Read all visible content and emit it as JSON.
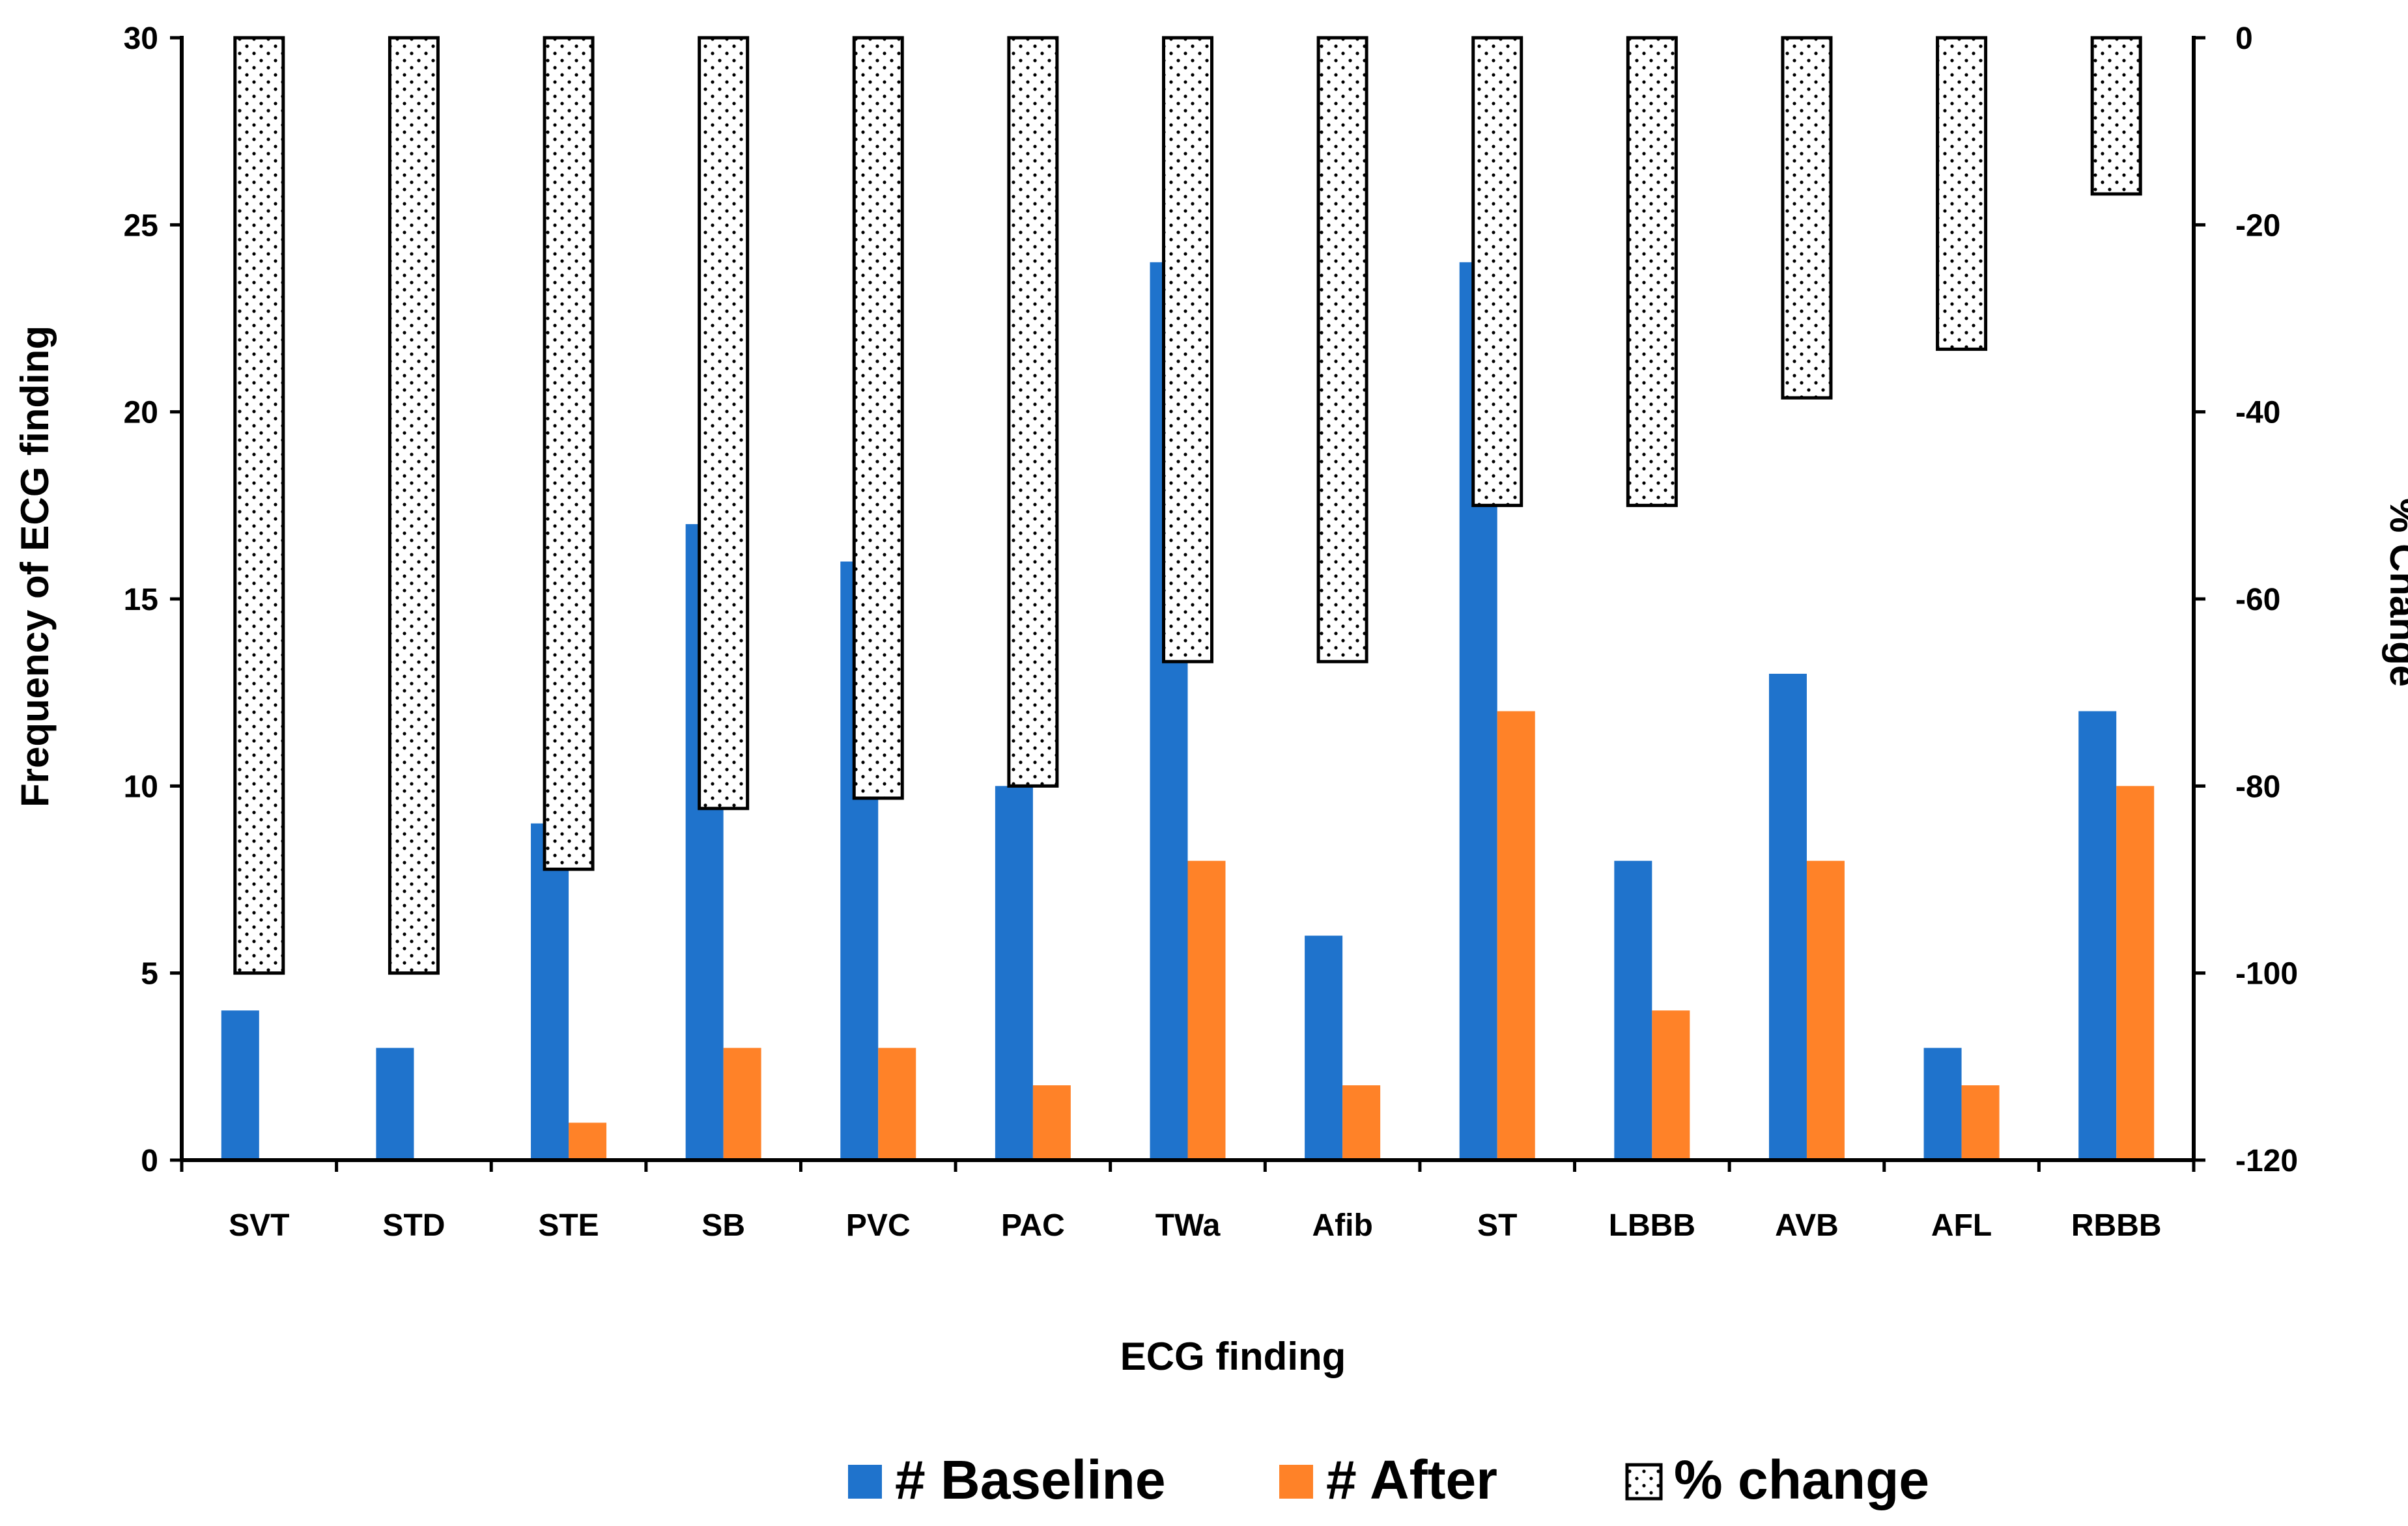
{
  "chart_data": {
    "type": "bar",
    "title": "",
    "xlabel": "ECG finding",
    "ylabel": "Frequency of ECG finding",
    "y2label": "% Change",
    "ylim": [
      0,
      30
    ],
    "y2lim": [
      -120,
      0
    ],
    "yticks": [
      "0",
      "5",
      "10",
      "15",
      "20",
      "25",
      "30"
    ],
    "y2ticks": [
      "-120",
      "-100",
      "-80",
      "-60",
      "-40",
      "-20",
      "0"
    ],
    "categories": [
      "SVT",
      "STD",
      "STE",
      "SB",
      "PVC",
      "PAC",
      "TWa",
      "Afib",
      "ST",
      "LBBB",
      "AVB",
      "AFL",
      "RBBB"
    ],
    "series": [
      {
        "name": "# Baseline",
        "axis": "left",
        "color": "#1F73CC",
        "values": [
          4,
          3,
          9,
          17,
          16,
          10,
          24,
          6,
          24,
          8,
          13,
          3,
          12
        ]
      },
      {
        "name": "# After",
        "axis": "left",
        "color": "#FF8228",
        "values": [
          0,
          0,
          1,
          3,
          3,
          2,
          8,
          2,
          12,
          4,
          8,
          2,
          10
        ]
      },
      {
        "name": "% change",
        "axis": "right",
        "color": "#ffffff",
        "pattern": "dotted",
        "values": [
          -100,
          -100,
          -88.9,
          -82.4,
          -81.3,
          -80,
          -66.7,
          -66.7,
          -50,
          -50,
          -38.5,
          -33.3,
          -16.7
        ]
      }
    ],
    "legend_position": "bottom-center",
    "grid": false
  }
}
